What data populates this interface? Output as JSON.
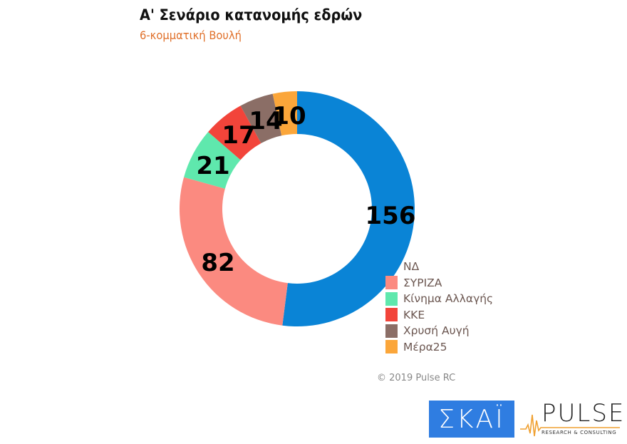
{
  "header": {
    "title": "Α' Σενάριο κατανομής εδρών",
    "subtitle": "6-κομματική Βουλή"
  },
  "chart_data": {
    "type": "pie",
    "variant": "donut",
    "title": "Α' Σενάριο κατανομής εδρών",
    "subtitle": "6-κομματική Βουλή",
    "total": 300,
    "start_angle": "12 o'clock, clockwise",
    "categories": [
      "ΝΔ",
      "ΣΥΡΙΖΑ",
      "Κίνημα Αλλαγής",
      "ΚΚΕ",
      "Χρυσή Αυγή",
      "Μέρα25"
    ],
    "values": [
      156,
      82,
      21,
      17,
      14,
      10
    ],
    "colors": [
      "#0a84d6",
      "#fb8a80",
      "#5fe8ad",
      "#f2443a",
      "#8b6e66",
      "#fba63a"
    ],
    "legend_position": "bottom-right"
  },
  "legend": {
    "items": [
      {
        "label": "ΝΔ",
        "color": "#0a84d6"
      },
      {
        "label": "ΣΥΡΙΖΑ",
        "color": "#fb8a80"
      },
      {
        "label": "Κίνημα Αλλαγής",
        "color": "#5fe8ad"
      },
      {
        "label": "ΚΚΕ",
        "color": "#f2443a"
      },
      {
        "label": "Χρυσή Αυγή",
        "color": "#8b6e66"
      },
      {
        "label": "Μέρα25",
        "color": "#fba63a"
      }
    ]
  },
  "labels": {
    "nd": "156",
    "syriza": "82",
    "kinal": "21",
    "kke": "17",
    "xa": "14",
    "mera25": "10"
  },
  "footer": {
    "copyright": "© 2019 Pulse RC",
    "logo_skai": "ΣΚΑΪ",
    "logo_pulse": "PULSE",
    "logo_pulse_sub": "RESEARCH & CONSULTING"
  }
}
